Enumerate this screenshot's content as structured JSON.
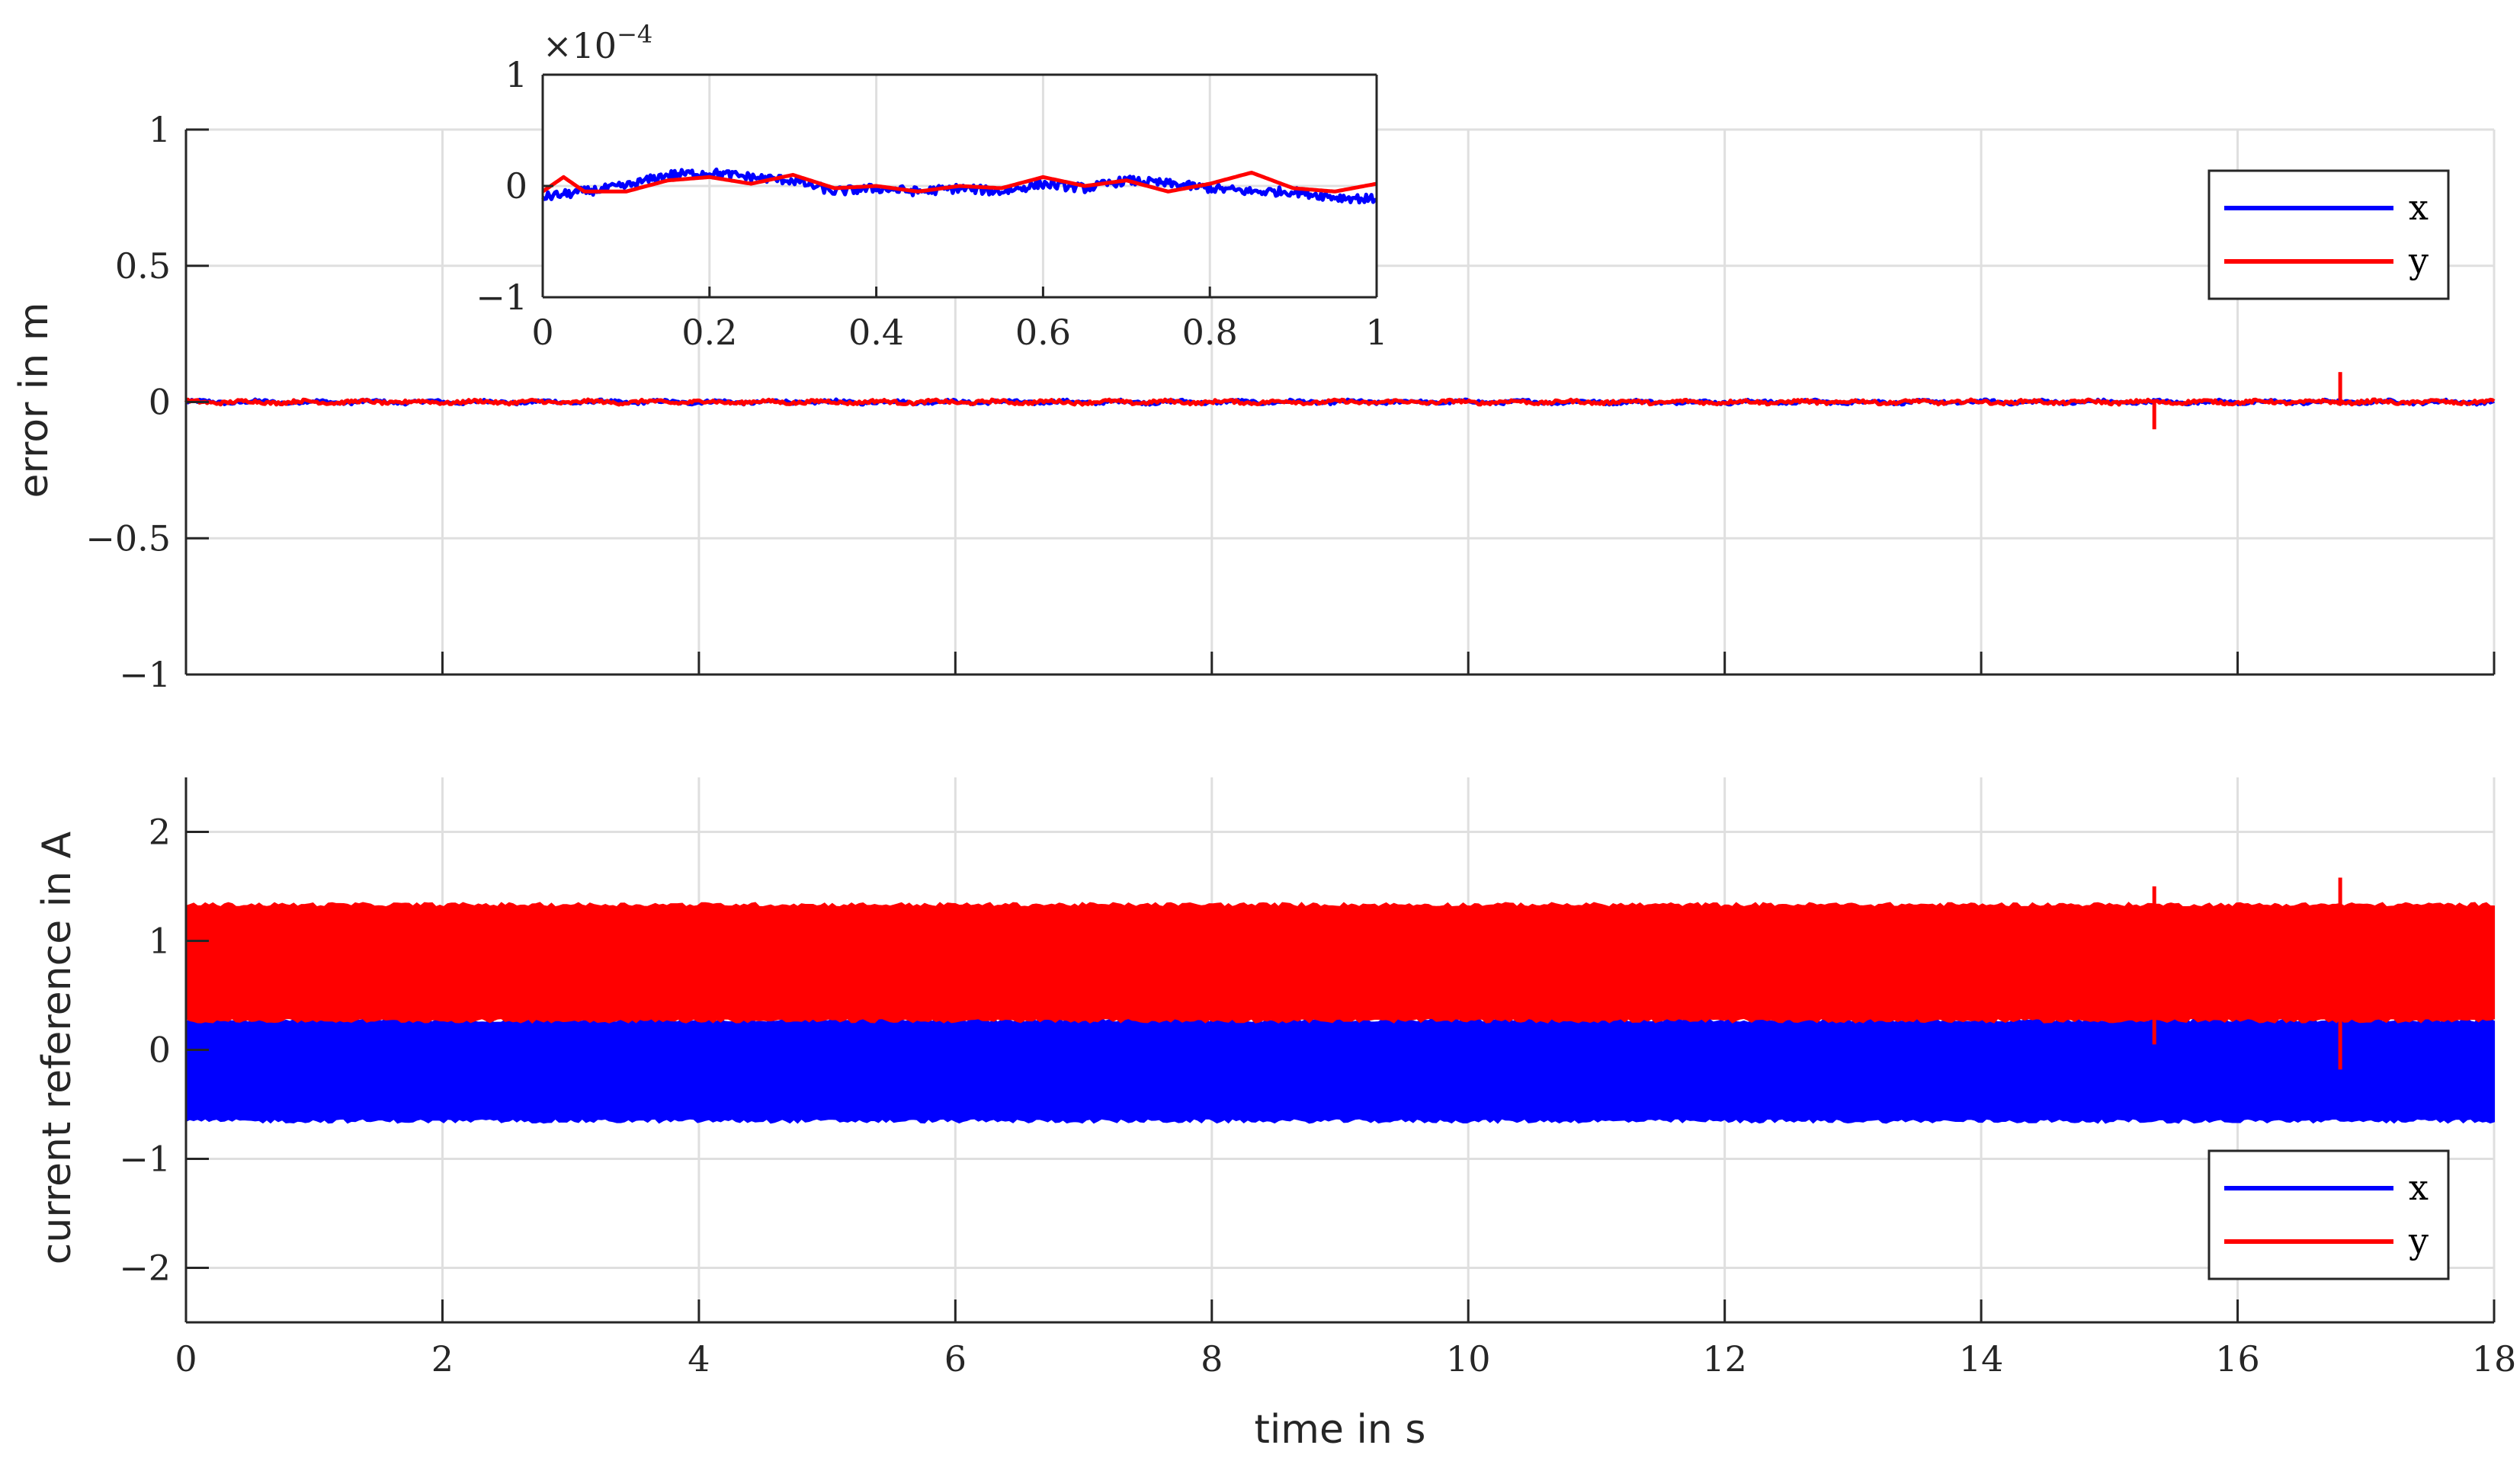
{
  "chart_data": [
    {
      "type": "line",
      "name": "error",
      "ylabel": "error in m",
      "xlabel": "",
      "xlim": [
        0,
        18
      ],
      "ylim": [
        -1,
        1
      ],
      "xticks": [
        "0",
        "2",
        "4",
        "6",
        "8",
        "10",
        "12",
        "14",
        "16",
        "18"
      ],
      "yticks": [
        "1",
        "0.5",
        "0",
        "−0.5",
        "−1"
      ],
      "grid": true,
      "legend": {
        "placement": "top-right",
        "entries": [
          "x",
          "y"
        ]
      },
      "series": [
        {
          "name": "x",
          "color": "#0000ff",
          "description": "near zero noise",
          "x": [
            0,
            18
          ],
          "y": [
            0,
            0
          ]
        },
        {
          "name": "y",
          "color": "#ff0000",
          "description": "near zero noise with spikes",
          "spikes": [
            {
              "x": 15.35,
              "y": -0.1
            },
            {
              "x": 16.8,
              "y": 0.11
            }
          ],
          "x": [
            0,
            18
          ],
          "y": [
            0,
            0
          ]
        }
      ]
    },
    {
      "type": "line",
      "name": "inset",
      "multiplier": "×10",
      "multiplier_exp": "−4",
      "xlim": [
        0,
        1
      ],
      "ylim": [
        -1,
        1
      ],
      "xticks": [
        "0",
        "0.2",
        "0.4",
        "0.6",
        "0.8",
        "1"
      ],
      "yticks": [
        "1",
        "0",
        "−1"
      ],
      "grid": true,
      "series": [
        {
          "name": "x",
          "color": "#0000ff",
          "x": [
            0,
            0.05,
            0.1,
            0.15,
            0.2,
            0.25,
            0.3,
            0.35,
            0.4,
            0.45,
            0.5,
            0.55,
            0.6,
            0.65,
            0.7,
            0.75,
            0.8,
            0.85,
            0.9,
            0.95,
            1.0
          ],
          "y": [
            -0.1,
            -0.05,
            0.0,
            0.1,
            0.12,
            0.08,
            0.05,
            -0.05,
            -0.02,
            -0.05,
            -0.02,
            -0.05,
            0.02,
            -0.02,
            0.05,
            0.02,
            -0.02,
            -0.05,
            -0.05,
            -0.1,
            -0.12
          ]
        },
        {
          "name": "y",
          "color": "#ff0000",
          "x": [
            0,
            0.025,
            0.05,
            0.1,
            0.15,
            0.2,
            0.25,
            0.3,
            0.35,
            0.4,
            0.45,
            0.5,
            0.55,
            0.6,
            0.65,
            0.7,
            0.75,
            0.8,
            0.85,
            0.9,
            0.95,
            1.0
          ],
          "y": [
            -0.05,
            0.08,
            -0.05,
            -0.05,
            0.05,
            0.08,
            0.02,
            0.1,
            -0.02,
            0.0,
            -0.05,
            0.0,
            -0.02,
            0.08,
            0.0,
            0.05,
            -0.05,
            0.02,
            0.12,
            -0.02,
            -0.05,
            0.02
          ]
        }
      ]
    },
    {
      "type": "line",
      "name": "current",
      "ylabel": "current reference in A",
      "xlabel": "time in s",
      "xlim": [
        0,
        18
      ],
      "ylim": [
        -2.5,
        2.5
      ],
      "xticks": [
        "0",
        "2",
        "4",
        "6",
        "8",
        "10",
        "12",
        "14",
        "16",
        "18"
      ],
      "yticks": [
        "2",
        "1",
        "0",
        "−1",
        "−2"
      ],
      "grid": true,
      "legend": {
        "placement": "bottom-right",
        "entries": [
          "x",
          "y"
        ]
      },
      "series": [
        {
          "name": "x",
          "color": "#0000ff",
          "band": [
            -0.65,
            0.27
          ],
          "x": [
            0,
            18
          ]
        },
        {
          "name": "y",
          "color": "#ff0000",
          "band": [
            0.27,
            1.33
          ],
          "spikes": [
            {
              "x": 15.35,
              "low": 0.05,
              "high": 1.5
            },
            {
              "x": 16.8,
              "low": -0.18,
              "high": 1.58
            }
          ],
          "x": [
            0,
            18
          ]
        }
      ]
    }
  ]
}
